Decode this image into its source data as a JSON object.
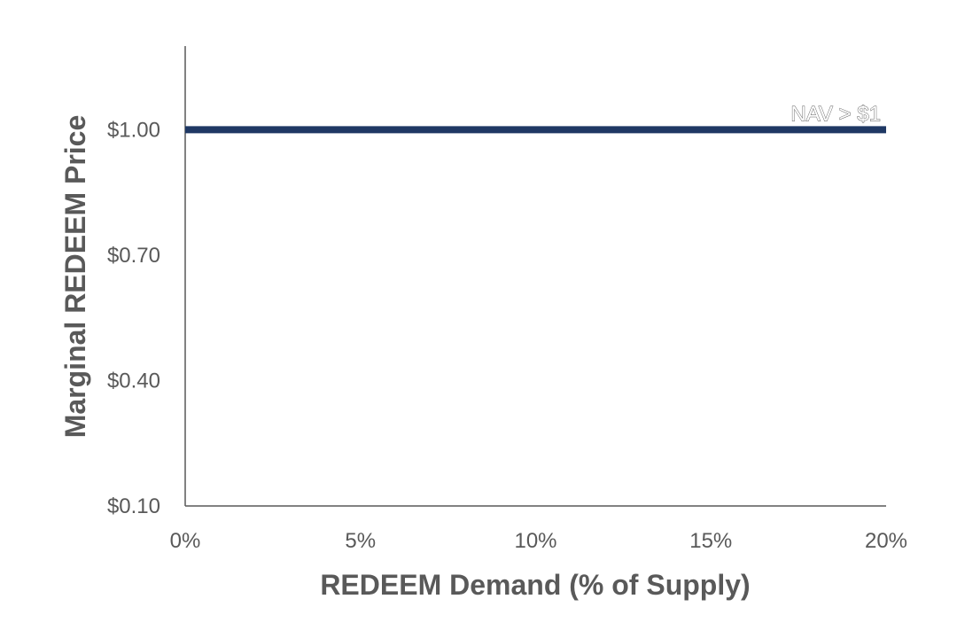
{
  "chart_data": {
    "type": "line",
    "title": "",
    "xlabel": "REDEEM Demand (% of Supply)",
    "ylabel": "Marginal REDEEM Price",
    "x_ticks": [
      {
        "value": 0,
        "label": "0%"
      },
      {
        "value": 5,
        "label": "5%"
      },
      {
        "value": 10,
        "label": "10%"
      },
      {
        "value": 15,
        "label": "15%"
      },
      {
        "value": 20,
        "label": "20%"
      }
    ],
    "y_ticks": [
      {
        "value": 0.1,
        "label": "$0.10"
      },
      {
        "value": 0.4,
        "label": "$0.40"
      },
      {
        "value": 0.7,
        "label": "$0.70"
      },
      {
        "value": 1.0,
        "label": "$1.00"
      }
    ],
    "xlim": [
      0,
      20
    ],
    "ylim": [
      0.1,
      1.2
    ],
    "grid": false,
    "series": [
      {
        "name": "NAV > $1",
        "color": "#1f3864",
        "x": [
          0,
          20
        ],
        "y": [
          1.0,
          1.0
        ]
      }
    ]
  }
}
